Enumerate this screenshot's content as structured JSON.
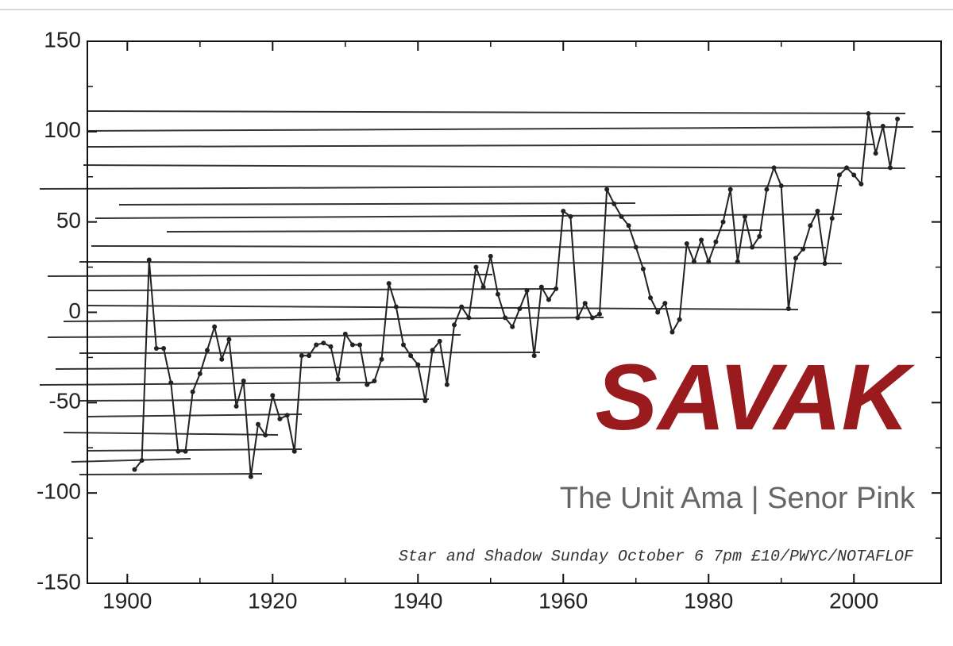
{
  "chart_data": {
    "type": "line",
    "title": "SAVAK",
    "subtitle": "The Unit Ama | Senor Pink",
    "annotation": "Star and Shadow Sunday October 6 7pm £10/PWYC/NOTAFLOF",
    "color": "#222222",
    "x": [
      1901,
      1902,
      1903,
      1904,
      1905,
      1906,
      1907,
      1908,
      1909,
      1910,
      1911,
      1912,
      1913,
      1914,
      1915,
      1916,
      1917,
      1918,
      1919,
      1920,
      1921,
      1922,
      1923,
      1924,
      1925,
      1926,
      1927,
      1928,
      1929,
      1930,
      1931,
      1932,
      1933,
      1934,
      1935,
      1936,
      1937,
      1938,
      1939,
      1940,
      1941,
      1942,
      1943,
      1944,
      1945,
      1946,
      1947,
      1948,
      1949,
      1950,
      1951,
      1952,
      1953,
      1954,
      1955,
      1956,
      1957,
      1958,
      1959,
      1960,
      1961,
      1962,
      1963,
      1964,
      1965,
      1966,
      1967,
      1968,
      1969,
      1970,
      1971,
      1972,
      1973,
      1974,
      1975,
      1976,
      1977,
      1978,
      1979,
      1980,
      1981,
      1982,
      1983,
      1984,
      1985,
      1986,
      1987,
      1988,
      1989,
      1990,
      1991,
      1992,
      1993,
      1994,
      1995,
      1996,
      1997,
      1998,
      1999,
      2000,
      2001,
      2002,
      2003,
      2004,
      2005,
      2006
    ],
    "values": [
      -87,
      -82,
      29,
      -20,
      -20,
      -39,
      -77,
      -77,
      -44,
      -34,
      -21,
      -8,
      -26,
      -15,
      -52,
      -38,
      -91,
      -62,
      -68,
      -46,
      -59,
      -57,
      -77,
      -24,
      -24,
      -18,
      -17,
      -19,
      -37,
      -12,
      -18,
      -18,
      -40,
      -38,
      -26,
      16,
      3,
      -18,
      -24,
      -29,
      -49,
      -21,
      -16,
      -40,
      -7,
      3,
      -3,
      25,
      14,
      31,
      10,
      -3,
      -8,
      2,
      12,
      -24,
      14,
      7,
      13,
      56,
      53,
      -3,
      5,
      -3,
      -1,
      68,
      60,
      53,
      48,
      36,
      24,
      8,
      0,
      5,
      -11,
      -4,
      38,
      28,
      40,
      28,
      39,
      50,
      68,
      28,
      53,
      36,
      42,
      68,
      80,
      70,
      2,
      30,
      35,
      48,
      56,
      27,
      52,
      76,
      80,
      76,
      71,
      110,
      88,
      103,
      80,
      107
    ],
    "xlim": [
      1894.5,
      2012
    ],
    "ylim": [
      -150,
      150
    ],
    "xticks": [
      1900,
      1920,
      1940,
      1960,
      1980,
      2000
    ],
    "yticks": [
      -150,
      -100,
      -50,
      0,
      50,
      100,
      150
    ]
  }
}
